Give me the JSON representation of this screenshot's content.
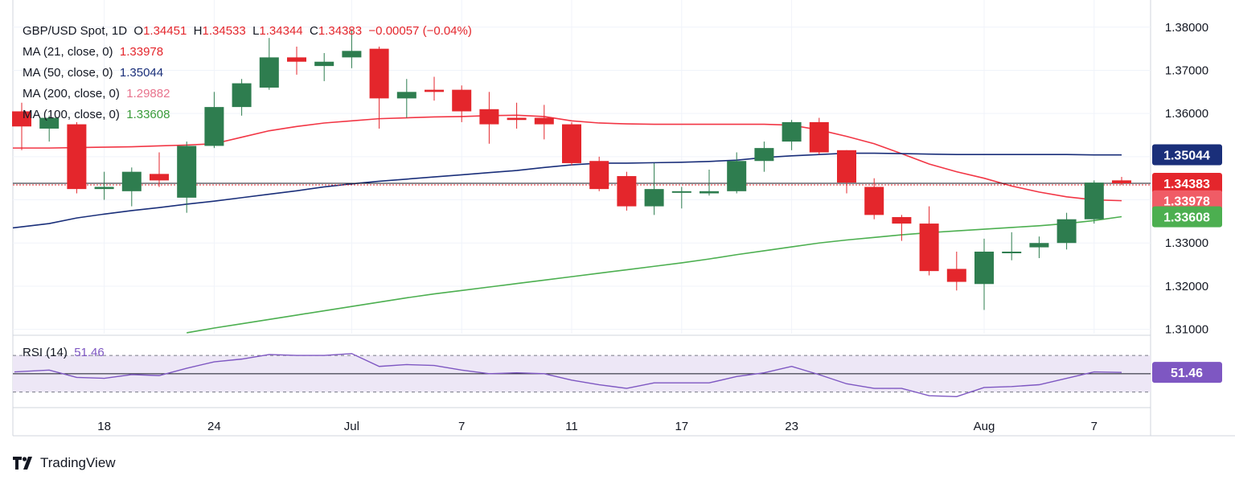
{
  "header": {
    "symbol": "GBP/USD Spot, 1D",
    "o_label": "O",
    "o_value": "1.34451",
    "h_label": "H",
    "h_value": "1.34533",
    "l_label": "L",
    "l_value": "1.34344",
    "c_label": "C",
    "c_value": "1.34383",
    "change": "−0.00057 (−0.04%)"
  },
  "legend": {
    "ma21_label": "MA (21, close, 0)",
    "ma21_value": "1.33978",
    "ma50_label": "MA (50, close, 0)",
    "ma50_value": "1.35044",
    "ma200_label": "MA (200, close, 0)",
    "ma200_value": "1.29882",
    "ma100_label": "MA (100, close, 0)",
    "ma100_value": "1.33608",
    "rsi_label": "RSI (14)",
    "rsi_value": "51.46"
  },
  "watermark": "TradingView",
  "colors": {
    "up": "#2e7d4f",
    "down": "#e4262c",
    "ma21": "#f23645",
    "ma50": "#1a2f7a",
    "ma100": "#4caf50",
    "rsi": "#7e57c2",
    "rsi_band": "#ede7f6"
  },
  "chart_data": {
    "type": "candlestick",
    "title": "GBP/USD Spot, 1D",
    "ylim": [
      1.309,
      1.3835
    ],
    "y_ticks": [
      "1.31000",
      "1.32000",
      "1.33000",
      "1.34000",
      "1.35000",
      "1.36000",
      "1.37000",
      "1.38000"
    ],
    "y_tick_values": [
      1.31,
      1.32,
      1.33,
      1.34,
      1.35,
      1.36,
      1.37,
      1.38
    ],
    "x_labels": [
      {
        "i": 3,
        "label": "18"
      },
      {
        "i": 7,
        "label": "24"
      },
      {
        "i": 12,
        "label": "Jul"
      },
      {
        "i": 16,
        "label": "7"
      },
      {
        "i": 20,
        "label": "11"
      },
      {
        "i": 24,
        "label": "17"
      },
      {
        "i": 28,
        "label": "23"
      },
      {
        "i": 35,
        "label": "Aug"
      },
      {
        "i": 39,
        "label": "7"
      }
    ],
    "candles": [
      {
        "o": 1.3605,
        "h": 1.3625,
        "l": 1.3515,
        "c": 1.357
      },
      {
        "o": 1.3565,
        "h": 1.3595,
        "l": 1.3535,
        "c": 1.359
      },
      {
        "o": 1.3575,
        "h": 1.358,
        "l": 1.3415,
        "c": 1.3425
      },
      {
        "o": 1.3425,
        "h": 1.3465,
        "l": 1.34,
        "c": 1.343
      },
      {
        "o": 1.342,
        "h": 1.3475,
        "l": 1.3385,
        "c": 1.3465
      },
      {
        "o": 1.346,
        "h": 1.351,
        "l": 1.343,
        "c": 1.3445
      },
      {
        "o": 1.3405,
        "h": 1.3535,
        "l": 1.337,
        "c": 1.3525
      },
      {
        "o": 1.3525,
        "h": 1.365,
        "l": 1.352,
        "c": 1.3615
      },
      {
        "o": 1.3615,
        "h": 1.368,
        "l": 1.3595,
        "c": 1.367
      },
      {
        "o": 1.366,
        "h": 1.3775,
        "l": 1.3655,
        "c": 1.373
      },
      {
        "o": 1.373,
        "h": 1.3755,
        "l": 1.369,
        "c": 1.372
      },
      {
        "o": 1.371,
        "h": 1.374,
        "l": 1.3675,
        "c": 1.372
      },
      {
        "o": 1.373,
        "h": 1.3795,
        "l": 1.3705,
        "c": 1.3745
      },
      {
        "o": 1.375,
        "h": 1.3755,
        "l": 1.3565,
        "c": 1.3635
      },
      {
        "o": 1.3635,
        "h": 1.368,
        "l": 1.359,
        "c": 1.365
      },
      {
        "o": 1.3655,
        "h": 1.3685,
        "l": 1.363,
        "c": 1.365
      },
      {
        "o": 1.3655,
        "h": 1.3665,
        "l": 1.358,
        "c": 1.3605
      },
      {
        "o": 1.361,
        "h": 1.365,
        "l": 1.353,
        "c": 1.3575
      },
      {
        "o": 1.359,
        "h": 1.3625,
        "l": 1.3565,
        "c": 1.3585
      },
      {
        "o": 1.359,
        "h": 1.362,
        "l": 1.354,
        "c": 1.3575
      },
      {
        "o": 1.3575,
        "h": 1.358,
        "l": 1.348,
        "c": 1.3485
      },
      {
        "o": 1.349,
        "h": 1.35,
        "l": 1.342,
        "c": 1.3425
      },
      {
        "o": 1.3455,
        "h": 1.3465,
        "l": 1.3375,
        "c": 1.3385
      },
      {
        "o": 1.3385,
        "h": 1.3485,
        "l": 1.3365,
        "c": 1.3425
      },
      {
        "o": 1.342,
        "h": 1.343,
        "l": 1.338,
        "c": 1.342
      },
      {
        "o": 1.3415,
        "h": 1.347,
        "l": 1.341,
        "c": 1.342
      },
      {
        "o": 1.342,
        "h": 1.351,
        "l": 1.3415,
        "c": 1.349
      },
      {
        "o": 1.349,
        "h": 1.3535,
        "l": 1.3465,
        "c": 1.352
      },
      {
        "o": 1.3535,
        "h": 1.3585,
        "l": 1.3515,
        "c": 1.358
      },
      {
        "o": 1.358,
        "h": 1.359,
        "l": 1.3505,
        "c": 1.351
      },
      {
        "o": 1.3515,
        "h": 1.3515,
        "l": 1.3415,
        "c": 1.344
      },
      {
        "o": 1.343,
        "h": 1.345,
        "l": 1.3355,
        "c": 1.3365
      },
      {
        "o": 1.336,
        "h": 1.3365,
        "l": 1.3305,
        "c": 1.3345
      },
      {
        "o": 1.3345,
        "h": 1.3385,
        "l": 1.3225,
        "c": 1.3235
      },
      {
        "o": 1.324,
        "h": 1.328,
        "l": 1.319,
        "c": 1.321
      },
      {
        "o": 1.3205,
        "h": 1.331,
        "l": 1.3145,
        "c": 1.328
      },
      {
        "o": 1.328,
        "h": 1.3325,
        "l": 1.326,
        "c": 1.328
      },
      {
        "o": 1.329,
        "h": 1.3315,
        "l": 1.3265,
        "c": 1.33
      },
      {
        "o": 1.33,
        "h": 1.337,
        "l": 1.3285,
        "c": 1.3355
      },
      {
        "o": 1.3355,
        "h": 1.3445,
        "l": 1.3345,
        "c": 1.344
      },
      {
        "o": 1.34451,
        "h": 1.34533,
        "l": 1.34344,
        "c": 1.34383
      }
    ],
    "ma21": [
      1.352,
      1.352,
      1.3521,
      1.3522,
      1.3523,
      1.3525,
      1.3527,
      1.353,
      1.3545,
      1.356,
      1.357,
      1.3578,
      1.3583,
      1.3588,
      1.359,
      1.3592,
      1.3593,
      1.3595,
      1.3596,
      1.3593,
      1.3583,
      1.3578,
      1.3576,
      1.3575,
      1.3575,
      1.3575,
      1.3575,
      1.3575,
      1.3573,
      1.3562,
      1.3547,
      1.353,
      1.3507,
      1.3483,
      1.3465,
      1.345,
      1.3432,
      1.3418,
      1.3407,
      1.34,
      1.3398
    ],
    "ma50": [
      1.3335,
      1.3345,
      1.3358,
      1.3367,
      1.3375,
      1.3382,
      1.339,
      1.3397,
      1.3405,
      1.3413,
      1.3421,
      1.343,
      1.3437,
      1.3443,
      1.3448,
      1.3453,
      1.3458,
      1.3463,
      1.3468,
      1.3475,
      1.3481,
      1.3485,
      1.3485,
      1.3486,
      1.3487,
      1.3489,
      1.3492,
      1.3498,
      1.3502,
      1.3505,
      1.3508,
      1.3508,
      1.3507,
      1.3506,
      1.3505,
      1.3505,
      1.3505,
      1.3505,
      1.3505,
      1.3504,
      1.3504
    ],
    "ma100": [
      1.303,
      1.304,
      1.305,
      1.306,
      1.307,
      1.3081,
      1.3092,
      1.3103,
      1.3113,
      1.3123,
      1.3133,
      1.3143,
      1.3153,
      1.3163,
      1.3173,
      1.3182,
      1.319,
      1.3198,
      1.3206,
      1.3214,
      1.3222,
      1.323,
      1.3238,
      1.3246,
      1.3254,
      1.3263,
      1.3273,
      1.3282,
      1.3291,
      1.33,
      1.3307,
      1.3313,
      1.3319,
      1.3324,
      1.3328,
      1.3332,
      1.3336,
      1.334,
      1.3345,
      1.3352,
      1.3361
    ],
    "rsi": {
      "ylim": [
        20,
        85
      ],
      "upper_band": 70,
      "lower_band": 30,
      "mid": 50,
      "values": [
        52,
        54,
        46,
        45,
        49,
        48,
        56,
        63,
        66,
        71,
        70,
        70,
        72,
        58,
        60,
        59,
        54,
        50,
        51,
        50,
        43,
        38,
        34,
        40,
        40,
        40,
        47,
        51,
        58,
        49,
        39,
        34,
        34,
        26,
        25,
        35,
        36,
        38,
        45,
        52,
        51.46
      ]
    },
    "price_labels": [
      {
        "value": 1.35044,
        "text": "1.35044",
        "bg": "#1a2f7a",
        "fg": "#ffffff"
      },
      {
        "value": 1.34383,
        "text": "1.34383",
        "bg": "#e4262c",
        "fg": "#ffffff"
      },
      {
        "value": 1.33978,
        "text": "1.33978",
        "bg": "#f05c66",
        "fg": "#ffffff"
      },
      {
        "value": 1.33608,
        "text": "1.33608",
        "bg": "#4caf50",
        "fg": "#ffffff"
      }
    ],
    "rsi_label": {
      "value": 51.46,
      "text": "51.46",
      "bg": "#7e57c2",
      "fg": "#ffffff"
    }
  }
}
